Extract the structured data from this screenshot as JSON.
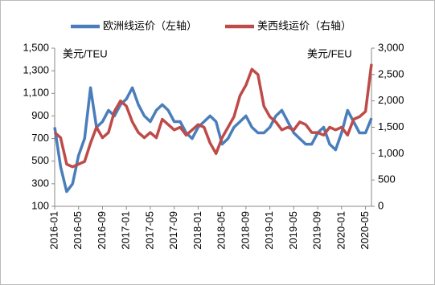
{
  "chart_data": {
    "type": "line",
    "legend_position": "top",
    "annotations": [
      "美元/TEU",
      "美元/FEU"
    ],
    "categories": [
      "2016-01",
      null,
      null,
      null,
      "2016-05",
      null,
      null,
      null,
      "2016-09",
      null,
      null,
      null,
      "2017-01",
      null,
      null,
      null,
      "2017-05",
      null,
      null,
      null,
      "2017-09",
      null,
      null,
      null,
      "2018-01",
      null,
      null,
      null,
      "2018-05",
      null,
      null,
      null,
      "2018-09",
      null,
      null,
      null,
      "2019-01",
      null,
      null,
      null,
      "2019-05",
      null,
      null,
      null,
      "2019-09",
      null,
      null,
      null,
      "2020-01",
      null,
      null,
      null,
      "2020-05",
      null
    ],
    "ylim": [
      100,
      1500
    ],
    "yticks": [
      100,
      300,
      500,
      700,
      900,
      {
        "value": 1100,
        "label": "1,100"
      },
      {
        "value": 1300,
        "label": "1,300"
      },
      {
        "value": 1500,
        "label": "1,500"
      }
    ],
    "y2lim": [
      0,
      3000
    ],
    "y2ticks": [
      0,
      500,
      {
        "value": 1000,
        "label": "1,000"
      },
      {
        "value": 1500,
        "label": "1,500"
      },
      {
        "value": 2000,
        "label": "2,000"
      },
      {
        "value": 2500,
        "label": "2,500"
      },
      {
        "value": 3000,
        "label": "3,000"
      }
    ],
    "series": [
      {
        "name": "欧洲线运价（左轴）",
        "color": "#4a7ebb",
        "axis": "y",
        "values": [
          800,
          450,
          230,
          300,
          550,
          700,
          1150,
          800,
          850,
          950,
          900,
          1000,
          1050,
          1150,
          1000,
          900,
          850,
          950,
          1000,
          950,
          850,
          850,
          750,
          700,
          800,
          850,
          900,
          850,
          650,
          700,
          800,
          850,
          900,
          800,
          750,
          750,
          800,
          900,
          950,
          850,
          750,
          700,
          650,
          650,
          750,
          800,
          650,
          600,
          750,
          950,
          850,
          750,
          750,
          880
        ]
      },
      {
        "name": "美西线运价（右轴）",
        "color": "#be4b48",
        "axis": "y2",
        "values": [
          1400,
          1300,
          800,
          750,
          800,
          850,
          1200,
          1500,
          1300,
          1400,
          1800,
          2000,
          1900,
          1600,
          1400,
          1300,
          1400,
          1300,
          1650,
          1550,
          1450,
          1500,
          1350,
          1450,
          1550,
          1500,
          1200,
          1000,
          1300,
          1500,
          1700,
          2100,
          2300,
          2600,
          2500,
          1900,
          1700,
          1600,
          1450,
          1500,
          1450,
          1600,
          1550,
          1400,
          1400,
          1350,
          1500,
          1450,
          1500,
          1350,
          1650,
          1700,
          1800,
          2700
        ]
      }
    ]
  }
}
